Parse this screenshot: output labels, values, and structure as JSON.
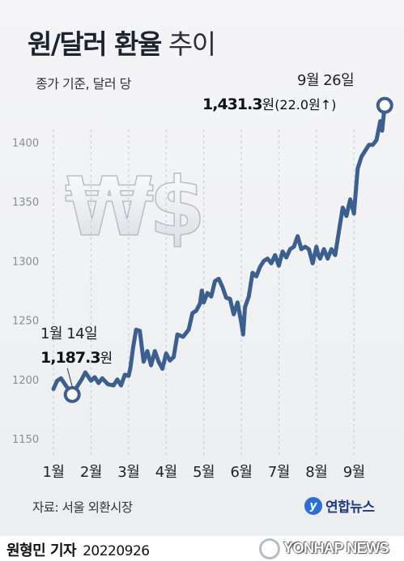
{
  "header": {
    "title_bold": "원/달러 환율",
    "title_light": "추이",
    "subtitle": "종가 기준, 달러 당"
  },
  "annotations": {
    "start": {
      "date": "1월 14일",
      "value": "1,187.3",
      "unit": "원"
    },
    "end": {
      "date": "9월 26일",
      "value": "1,431.3",
      "unit": "원",
      "change": "(22.0원↑)"
    }
  },
  "decoration": {
    "symbol_text": "₩$"
  },
  "source": "자료: 서울 외환시장",
  "brand": {
    "logo_text": "연합뉴스",
    "watermark": "YONHAP NEWS"
  },
  "author": {
    "name": "원형민 기자",
    "date": "20220926"
  },
  "colors": {
    "line": "#3b5f8f",
    "marker": "#3b5f8f",
    "grid": "#c9ccd1"
  },
  "chart_data": {
    "type": "line",
    "title": "원/달러 환율 추이",
    "subtitle": "종가 기준, 달러 당",
    "x_tick_labels": [
      "1월",
      "2월",
      "3월",
      "4월",
      "5월",
      "6월",
      "7월",
      "8월",
      "9월"
    ],
    "y_ticks": [
      1150,
      1200,
      1250,
      1300,
      1350,
      1400
    ],
    "ylim": [
      1140,
      1440
    ],
    "xlim": [
      1.0,
      9.9
    ],
    "grid": "vertical dashed at month positions",
    "series": [
      {
        "name": "원/달러 환율",
        "x": [
          1.0,
          1.1,
          1.2,
          1.35,
          1.5,
          1.65,
          1.75,
          1.85,
          2.0,
          2.1,
          2.2,
          2.3,
          2.45,
          2.6,
          2.7,
          2.8,
          2.9,
          3.0,
          3.05,
          3.12,
          3.2,
          3.3,
          3.4,
          3.5,
          3.6,
          3.7,
          3.8,
          3.9,
          4.0,
          4.1,
          4.2,
          4.3,
          4.45,
          4.6,
          4.7,
          4.8,
          4.9,
          4.95,
          5.0,
          5.1,
          5.2,
          5.3,
          5.4,
          5.5,
          5.6,
          5.7,
          5.8,
          5.9,
          6.0,
          6.05,
          6.1,
          6.2,
          6.3,
          6.4,
          6.5,
          6.6,
          6.7,
          6.8,
          6.9,
          7.0,
          7.1,
          7.2,
          7.3,
          7.4,
          7.5,
          7.6,
          7.7,
          7.8,
          7.9,
          8.0,
          8.05,
          8.1,
          8.2,
          8.3,
          8.4,
          8.5,
          8.6,
          8.7,
          8.8,
          8.9,
          9.0,
          9.1,
          9.2,
          9.3,
          9.4,
          9.5,
          9.6,
          9.7,
          9.75,
          9.82
        ],
        "y": [
          1192,
          1199,
          1201,
          1194,
          1187.3,
          1195,
          1200,
          1206,
          1199,
          1202,
          1197,
          1201,
          1196,
          1195,
          1200,
          1195,
          1204,
          1203,
          1210,
          1227,
          1242,
          1241,
          1215,
          1224,
          1212,
          1224,
          1215,
          1209,
          1222,
          1216,
          1219,
          1238,
          1236,
          1242,
          1256,
          1258,
          1264,
          1275,
          1265,
          1273,
          1270,
          1283,
          1285,
          1278,
          1269,
          1268,
          1255,
          1265,
          1248,
          1238,
          1261,
          1270,
          1290,
          1287,
          1295,
          1300,
          1302,
          1298,
          1305,
          1296,
          1308,
          1303,
          1310,
          1312,
          1321,
          1310,
          1312,
          1310,
          1298,
          1312,
          1305,
          1302,
          1310,
          1302,
          1310,
          1305,
          1325,
          1345,
          1338,
          1352,
          1340,
          1378,
          1388,
          1393,
          1398,
          1398,
          1402,
          1418,
          1410,
          1431.3
        ]
      }
    ]
  }
}
